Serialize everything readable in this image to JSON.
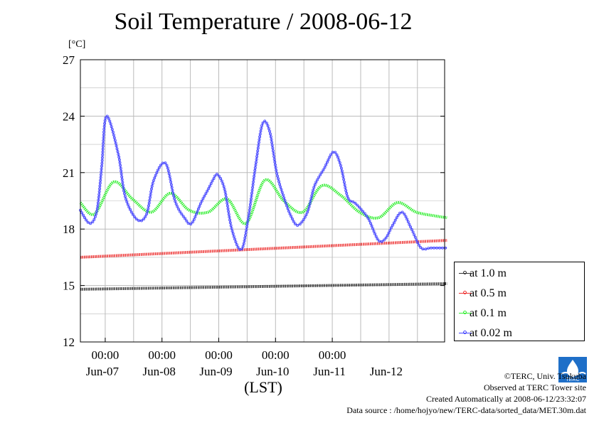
{
  "title": "Soil Temperature / 2008-06-12",
  "unit_label": "[°C]",
  "x_axis_label": "(LST)",
  "credits": {
    "copyright": "©TERC, Univ. Tsukuba",
    "observed": "Observed at TERC Tower site",
    "created": "Created Automatically at 2008-06-12/23:32:07",
    "source": "Data source : /home/hojyo/new/TERC-data/sorted_data/MET.30m.dat"
  },
  "logo_text": "TERC",
  "chart_data": {
    "type": "line",
    "title": "Soil Temperature / 2008-06-12",
    "ylabel": "[°C]",
    "xlabel": "(LST)",
    "ylim": [
      12,
      27
    ],
    "yticks": [
      "12",
      "15",
      "18",
      "21",
      "24",
      "27"
    ],
    "xlim": [
      "2008-06-06 13:30",
      "2008-06-12 23:30"
    ],
    "x_tick_times": [
      "00:00",
      "00:00",
      "00:00",
      "00:00",
      "00:00"
    ],
    "x_day_labels": [
      "Jun-07",
      "Jun-08",
      "Jun-09",
      "Jun-10",
      "Jun-11",
      "Jun-12"
    ],
    "grid": true,
    "legend_position": "bottom-right, outside plot",
    "series": [
      {
        "name": "at 1.0 m",
        "color": "#333333",
        "x_hours": [
          0,
          155
        ],
        "values": [
          14.8,
          15.1
        ]
      },
      {
        "name": "at 0.5 m",
        "color": "#ee3333",
        "x_hours": [
          0,
          155
        ],
        "values": [
          16.5,
          17.4
        ]
      },
      {
        "name": "at 0.1 m",
        "color": "#33ee33",
        "x_hours": [
          0,
          6,
          14,
          22,
          30,
          38,
          46,
          54,
          62,
          70,
          78,
          86,
          94,
          102,
          110,
          118,
          126,
          134,
          142,
          150,
          155
        ],
        "values": [
          19.4,
          18.8,
          20.5,
          19.6,
          18.9,
          19.9,
          19.0,
          18.9,
          19.6,
          18.3,
          20.6,
          19.5,
          18.9,
          20.3,
          19.8,
          18.9,
          18.6,
          19.4,
          18.9,
          18.7,
          18.6
        ]
      },
      {
        "name": "at 0.02 m",
        "color": "#4444ff",
        "x_hours": [
          0,
          4,
          7,
          9,
          11,
          16,
          19,
          24,
          28,
          31,
          36,
          40,
          44,
          47,
          51,
          54,
          56,
          58,
          61,
          64,
          68,
          71,
          74,
          77,
          80,
          83,
          86,
          89,
          92,
          96,
          99,
          103,
          107,
          110,
          113,
          116,
          119,
          122,
          126,
          129,
          132,
          136,
          140,
          144,
          148,
          152,
          155
        ],
        "values": [
          19.0,
          18.3,
          19.0,
          21.3,
          24.0,
          22.0,
          19.7,
          18.5,
          18.8,
          20.6,
          21.5,
          19.5,
          18.6,
          18.3,
          19.4,
          20.1,
          20.6,
          20.9,
          20.1,
          18.0,
          16.9,
          18.6,
          21.3,
          23.6,
          23.2,
          21.0,
          19.7,
          18.7,
          18.2,
          18.9,
          20.3,
          21.2,
          22.1,
          21.4,
          19.7,
          19.4,
          19.0,
          18.5,
          17.4,
          17.5,
          18.2,
          18.9,
          18.0,
          17.0,
          17.0,
          17.0,
          17.0
        ]
      }
    ]
  }
}
